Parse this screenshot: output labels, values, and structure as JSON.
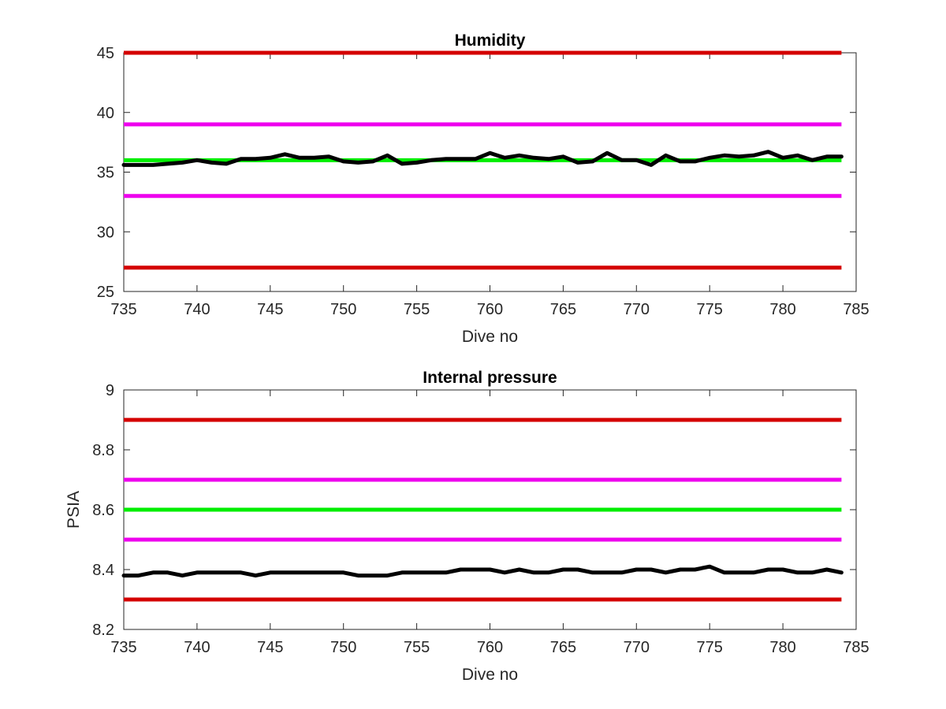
{
  "chart_data": [
    {
      "type": "line",
      "title": "Humidity",
      "xlabel": "Dive no",
      "ylabel": "",
      "xlim": [
        735,
        785
      ],
      "ylim": [
        25,
        45
      ],
      "xticks": [
        "735",
        "740",
        "745",
        "750",
        "755",
        "760",
        "765",
        "770",
        "775",
        "780",
        "785"
      ],
      "yticks": [
        "25",
        "30",
        "35",
        "40",
        "45"
      ],
      "grid": false,
      "reference_lines": [
        {
          "y": 45,
          "color": "#d40000"
        },
        {
          "y": 39,
          "color": "#ee00ee"
        },
        {
          "y": 36,
          "color": "#00ee00"
        },
        {
          "y": 33,
          "color": "#ee00ee"
        },
        {
          "y": 27,
          "color": "#d40000"
        }
      ],
      "series": [
        {
          "color": "#000000",
          "x": [
            735,
            736,
            737,
            738,
            739,
            740,
            741,
            742,
            743,
            744,
            745,
            746,
            747,
            748,
            749,
            750,
            751,
            752,
            753,
            754,
            755,
            756,
            757,
            758,
            759,
            760,
            761,
            762,
            763,
            764,
            765,
            766,
            767,
            768,
            769,
            770,
            771,
            772,
            773,
            774,
            775,
            776,
            777,
            778,
            779,
            780,
            781,
            782,
            783,
            784
          ],
          "y": [
            35.6,
            35.6,
            35.6,
            35.7,
            35.8,
            36.0,
            35.8,
            35.7,
            36.1,
            36.1,
            36.2,
            36.5,
            36.2,
            36.2,
            36.3,
            35.9,
            35.8,
            35.9,
            36.4,
            35.7,
            35.8,
            36.0,
            36.1,
            36.1,
            36.1,
            36.6,
            36.2,
            36.4,
            36.2,
            36.1,
            36.3,
            35.8,
            35.9,
            36.6,
            36.0,
            36.0,
            35.6,
            36.4,
            35.9,
            35.9,
            36.2,
            36.4,
            36.3,
            36.4,
            36.7,
            36.2,
            36.4,
            36.0,
            36.3,
            36.3
          ]
        }
      ]
    },
    {
      "type": "line",
      "title": "Internal pressure",
      "xlabel": "Dive no",
      "ylabel": "PSIA",
      "xlim": [
        735,
        785
      ],
      "ylim": [
        8.2,
        9.0
      ],
      "xticks": [
        "735",
        "740",
        "745",
        "750",
        "755",
        "760",
        "765",
        "770",
        "775",
        "780",
        "785"
      ],
      "yticks": [
        "8.2",
        "8.4",
        "8.6",
        "8.8",
        "9"
      ],
      "grid": false,
      "reference_lines": [
        {
          "y": 8.9,
          "color": "#d40000"
        },
        {
          "y": 8.7,
          "color": "#ee00ee"
        },
        {
          "y": 8.6,
          "color": "#00ee00"
        },
        {
          "y": 8.5,
          "color": "#ee00ee"
        },
        {
          "y": 8.3,
          "color": "#d40000"
        }
      ],
      "series": [
        {
          "color": "#000000",
          "x": [
            735,
            736,
            737,
            738,
            739,
            740,
            741,
            742,
            743,
            744,
            745,
            746,
            747,
            748,
            749,
            750,
            751,
            752,
            753,
            754,
            755,
            756,
            757,
            758,
            759,
            760,
            761,
            762,
            763,
            764,
            765,
            766,
            767,
            768,
            769,
            770,
            771,
            772,
            773,
            774,
            775,
            776,
            777,
            778,
            779,
            780,
            781,
            782,
            783,
            784
          ],
          "y": [
            8.38,
            8.38,
            8.39,
            8.39,
            8.38,
            8.39,
            8.39,
            8.39,
            8.39,
            8.38,
            8.39,
            8.39,
            8.39,
            8.39,
            8.39,
            8.39,
            8.38,
            8.38,
            8.38,
            8.39,
            8.39,
            8.39,
            8.39,
            8.4,
            8.4,
            8.4,
            8.39,
            8.4,
            8.39,
            8.39,
            8.4,
            8.4,
            8.39,
            8.39,
            8.39,
            8.4,
            8.4,
            8.39,
            8.4,
            8.4,
            8.41,
            8.39,
            8.39,
            8.39,
            8.4,
            8.4,
            8.39,
            8.39,
            8.4,
            8.39
          ]
        }
      ]
    }
  ]
}
